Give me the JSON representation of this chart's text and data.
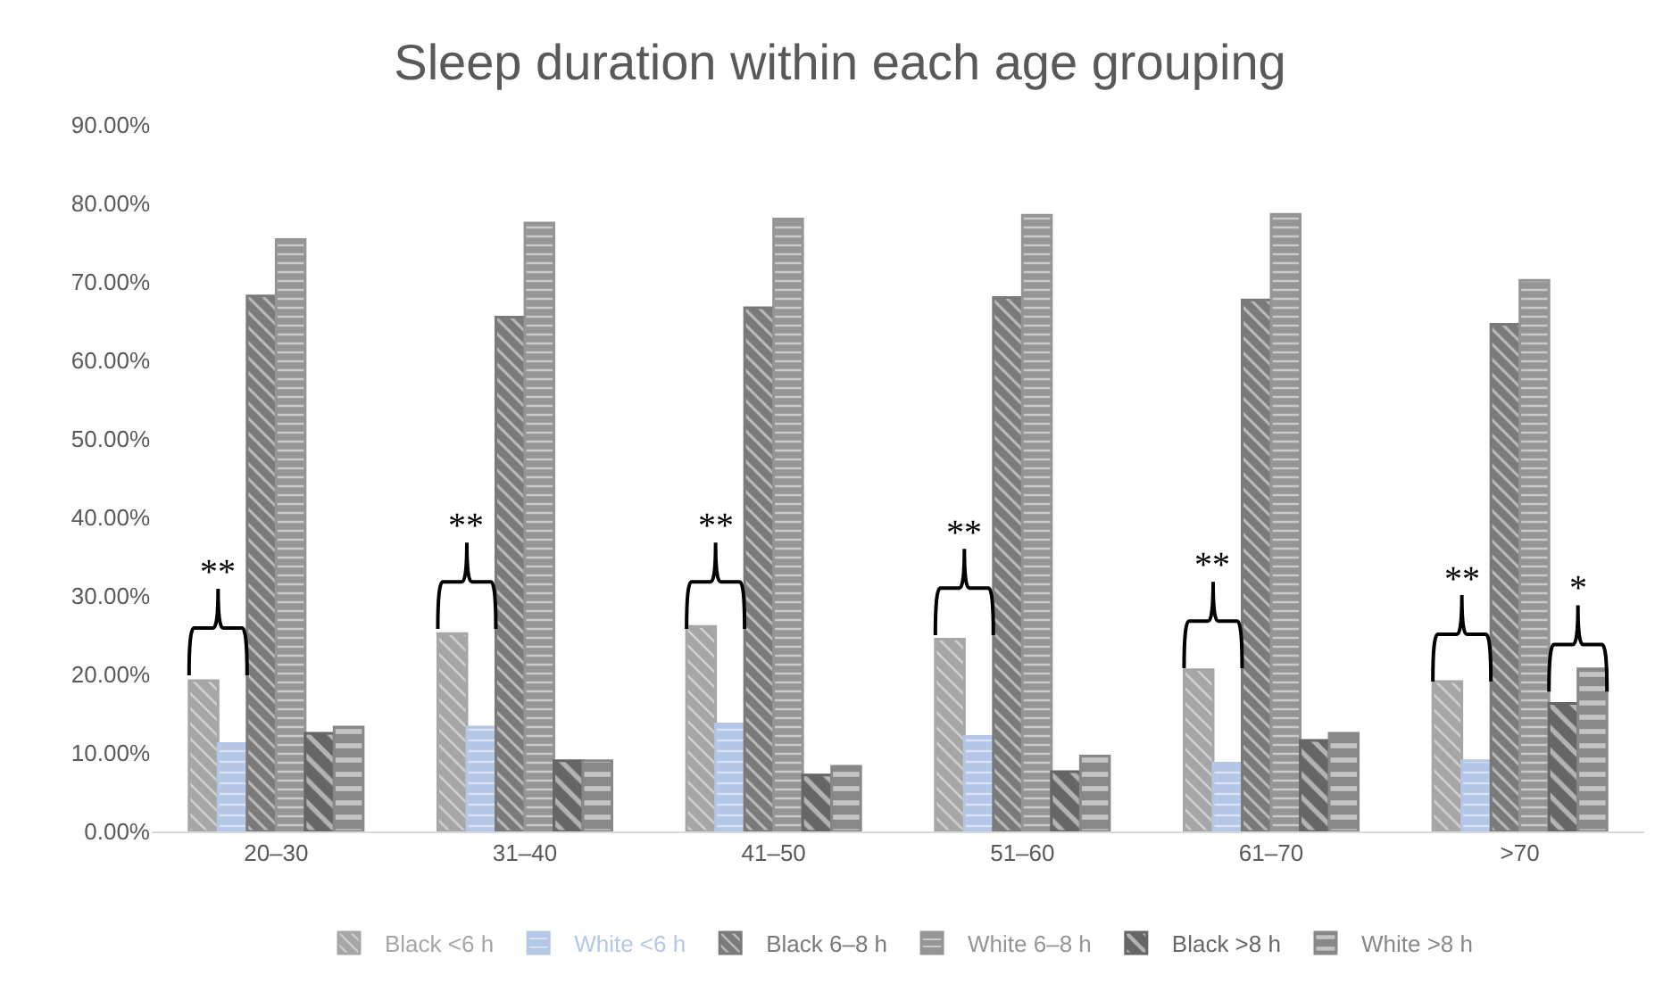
{
  "chart_data": {
    "type": "bar",
    "title": "Sleep duration within each age grouping",
    "categories": [
      "20–30",
      "31–40",
      "41–50",
      "51–60",
      "61–70",
      ">70"
    ],
    "series": [
      {
        "name": "Black <6 h",
        "color": "#a6a6a6",
        "values": [
          19.2,
          25.2,
          26.1,
          24.5,
          20.6,
          19.1
        ]
      },
      {
        "name": "White <6 h",
        "color": "#b4c7e7",
        "values": [
          11.2,
          13.3,
          13.7,
          12.1,
          8.7,
          9.0
        ]
      },
      {
        "name": "Black 6–8 h",
        "color": "#7a7a7a",
        "values": [
          68.2,
          65.5,
          66.7,
          68.0,
          67.7,
          64.6
        ]
      },
      {
        "name": "White 6–8 h",
        "color": "#959595",
        "values": [
          75.4,
          77.5,
          78.0,
          78.5,
          78.6,
          70.2
        ]
      },
      {
        "name": "Black >8 h",
        "color": "#666666",
        "values": [
          12.5,
          9.0,
          7.2,
          7.6,
          11.6,
          16.3
        ]
      },
      {
        "name": "White >8 h",
        "color": "#888888",
        "values": [
          13.3,
          9.0,
          8.3,
          9.6,
          12.5,
          20.7
        ]
      }
    ],
    "ylim": [
      0,
      90
    ],
    "yticks": [
      {
        "value": 0,
        "label": "0.00%"
      },
      {
        "value": 10,
        "label": "10.00%"
      },
      {
        "value": 20,
        "label": "20.00%"
      },
      {
        "value": 30,
        "label": "30.00%"
      },
      {
        "value": 40,
        "label": "40.00%"
      },
      {
        "value": 50,
        "label": "50.00%"
      },
      {
        "value": 60,
        "label": "60.00%"
      },
      {
        "value": 70,
        "label": "70.00%"
      },
      {
        "value": 80,
        "label": "80.00%"
      },
      {
        "value": 90,
        "label": "90.00%"
      }
    ],
    "annotations": [
      {
        "text": "**",
        "x": "20–30",
        "y": 30.9
      },
      {
        "text": "**",
        "x": "31–40",
        "y": 36.8
      },
      {
        "text": "**",
        "x": "41–50",
        "y": 36.8
      },
      {
        "text": "**",
        "x": "51–60",
        "y": 36.0
      },
      {
        "text": "**",
        "x": "61–70",
        "y": 31.8
      },
      {
        "text": "**",
        "x": ">70",
        "y": 30.1
      },
      {
        "text": "*",
        "x": ">70",
        "y": 28.8
      }
    ],
    "legend": "bottom"
  }
}
